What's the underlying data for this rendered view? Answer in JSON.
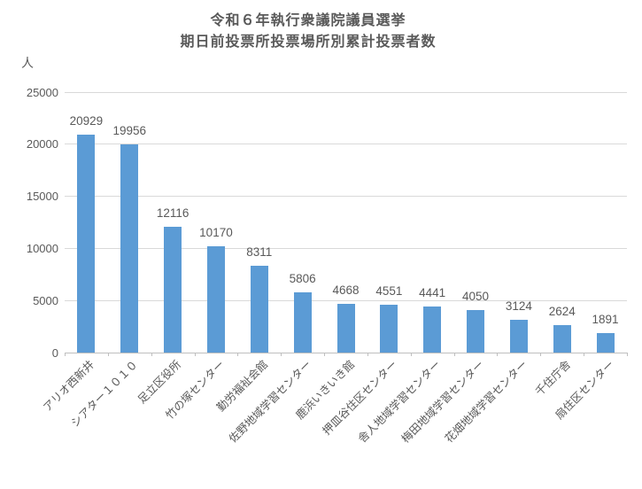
{
  "header": {
    "title_line1": "令和６年執行衆議院議員選挙",
    "title_line2": "期日前投票所投票場所別累計投票者数"
  },
  "y_axis": {
    "unit_label": "人",
    "tick_labels": [
      "0",
      "5000",
      "10000",
      "15000",
      "20000",
      "25000"
    ]
  },
  "chart_data": {
    "type": "bar",
    "title": "令和６年執行衆議院議員選挙 期日前投票所投票場所別累計投票者数",
    "categories": [
      "アリオ西新井",
      "シアター１０１０",
      "足立区役所",
      "竹の塚センター",
      "勤労福祉会館",
      "佐野地域学習センター",
      "鹿浜いきいき館",
      "押皿谷住区センター",
      "舎人地域学習センター",
      "梅田地域学習センター",
      "花畑地域学習センター",
      "千住庁舎",
      "扇住区センター"
    ],
    "values": [
      20929,
      19956,
      12116,
      10170,
      8311,
      5806,
      4668,
      4551,
      4441,
      4050,
      3124,
      2624,
      1891
    ],
    "xlabel": "",
    "ylabel": "人",
    "ylim": [
      0,
      25000
    ],
    "ytick_step": 5000,
    "grid": true,
    "legend": false,
    "data_labels_shown": true,
    "category_label_rotation_deg": -45
  },
  "colors": {
    "bar": "#5B9BD5",
    "title_text": "#595959",
    "axis_text": "#595959",
    "gridline": "#D9D9D9",
    "axis_line": "#BFBFBF"
  }
}
